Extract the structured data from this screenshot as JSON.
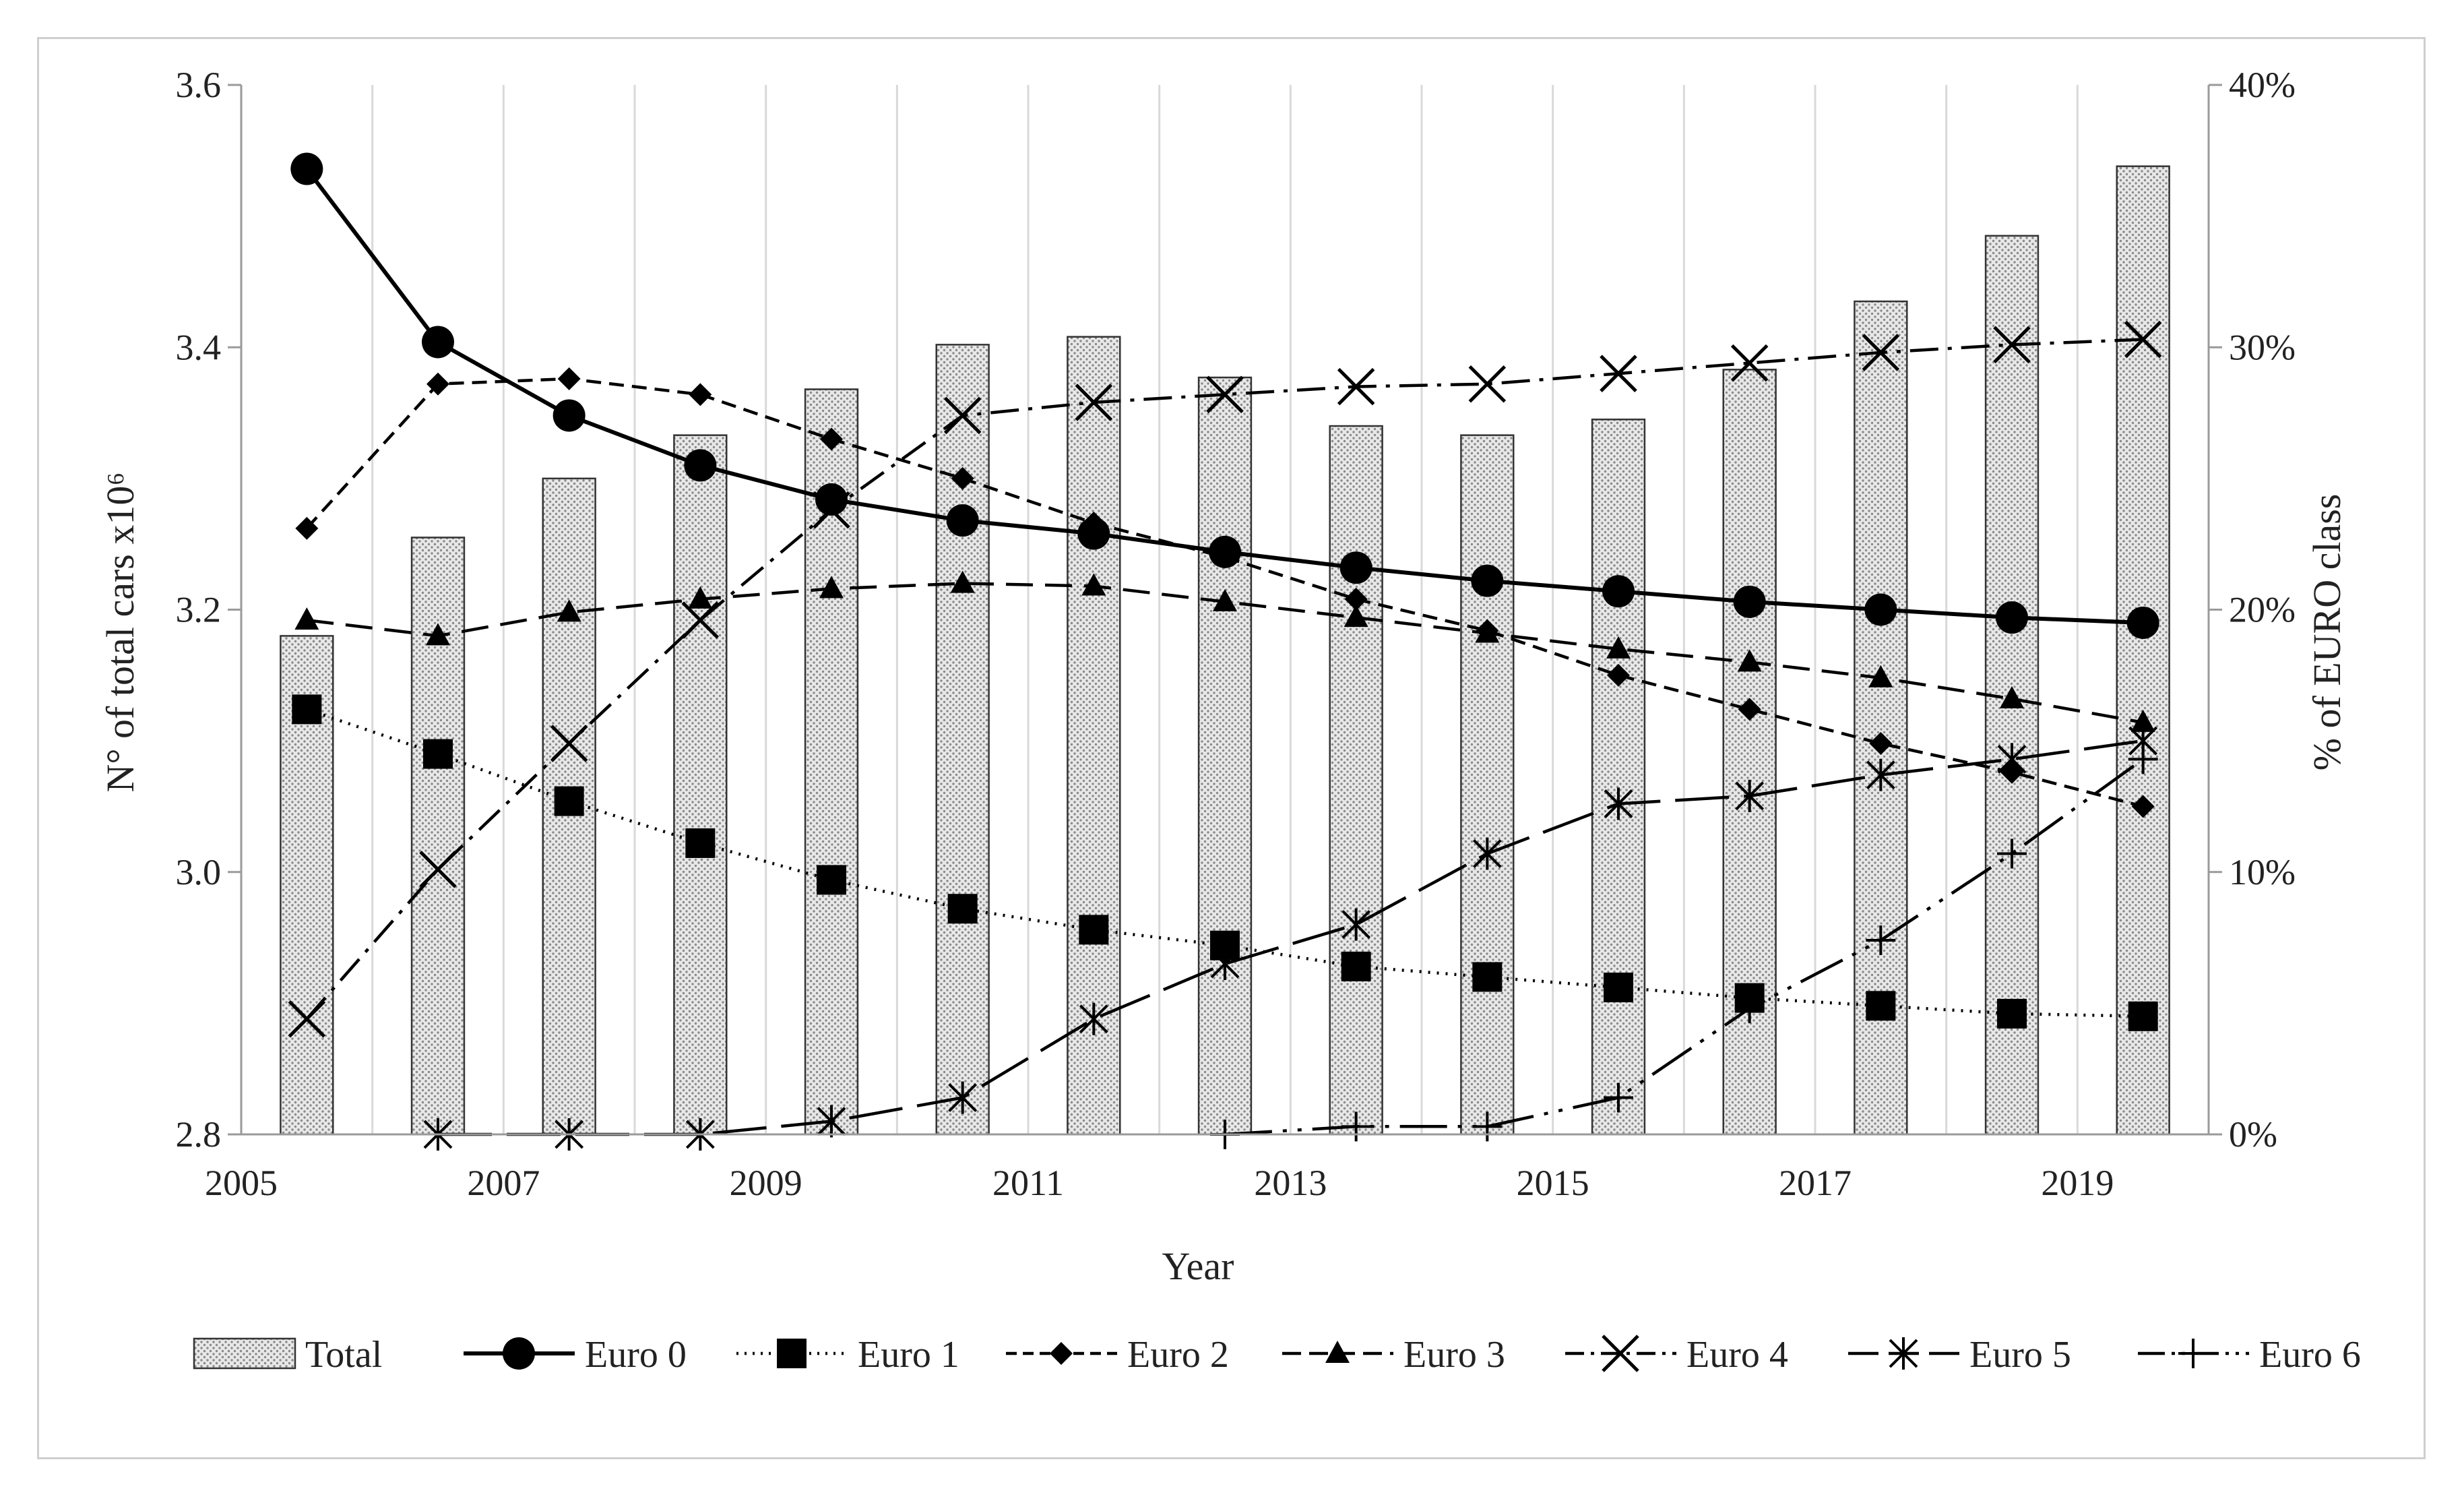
{
  "chart_data": {
    "type": "bar+line",
    "xlabel": "Year",
    "ylabel_left": "N° of total cars x10⁶",
    "ylabel_right": "% of EURO class",
    "x_tick_labels": [
      "2005",
      "2007",
      "2009",
      "2011",
      "2013",
      "2015",
      "2017",
      "2019"
    ],
    "y_left_ticks": [
      "2.8",
      "3.0",
      "3.2",
      "3.4",
      "3.6"
    ],
    "y_right_ticks": [
      "0%",
      "10%",
      "20%",
      "30%",
      "40%"
    ],
    "ylim_left": [
      2.8,
      3.6
    ],
    "ylim_right": [
      0,
      40
    ],
    "grid": "vertical",
    "legend_position": "bottom",
    "years": [
      2005,
      2006,
      2007,
      2008,
      2009,
      2010,
      2011,
      2012,
      2013,
      2014,
      2015,
      2016,
      2017,
      2018,
      2019
    ],
    "bars": {
      "name": "Total",
      "axis": "left",
      "values": [
        3.18,
        3.255,
        3.3,
        3.333,
        3.368,
        3.402,
        3.408,
        3.377,
        3.34,
        3.333,
        3.345,
        3.383,
        3.435,
        3.485,
        3.538
      ]
    },
    "series": [
      {
        "name": "Euro 0",
        "axis": "right",
        "marker": "circle",
        "dash": "solid",
        "values": [
          36.8,
          30.2,
          27.4,
          25.5,
          24.2,
          23.4,
          22.9,
          22.2,
          21.6,
          21.1,
          20.7,
          20.3,
          20.0,
          19.7,
          19.5
        ]
      },
      {
        "name": "Euro 1",
        "axis": "right",
        "marker": "square",
        "dash": "dotted",
        "values": [
          16.2,
          14.5,
          12.7,
          11.1,
          9.7,
          8.6,
          7.8,
          7.2,
          6.4,
          6.0,
          5.6,
          5.2,
          4.9,
          4.6,
          4.5
        ]
      },
      {
        "name": "Euro 2",
        "axis": "right",
        "marker": "diamond",
        "dash": "short-dash",
        "values": [
          23.1,
          28.6,
          28.8,
          28.2,
          26.5,
          25.0,
          23.3,
          22.0,
          20.4,
          19.2,
          17.5,
          16.2,
          14.9,
          13.8,
          12.5
        ]
      },
      {
        "name": "Euro 3",
        "axis": "right",
        "marker": "triangle",
        "dash": "dash",
        "values": [
          19.6,
          19.0,
          19.9,
          20.4,
          20.8,
          21.0,
          20.9,
          20.3,
          19.7,
          19.1,
          18.5,
          18.0,
          17.4,
          16.6,
          15.7
        ]
      },
      {
        "name": "Euro 4",
        "axis": "right",
        "marker": "x",
        "dash": "dash-dot",
        "values": [
          4.4,
          10.1,
          14.9,
          19.6,
          23.8,
          27.4,
          27.9,
          28.2,
          28.5,
          28.6,
          29.0,
          29.4,
          29.8,
          30.1,
          30.3
        ]
      },
      {
        "name": "Euro 5",
        "axis": "right",
        "marker": "asterisk",
        "dash": "long-dash",
        "values": [
          null,
          0.0,
          0.0,
          0.0,
          0.5,
          1.4,
          4.4,
          6.5,
          8.0,
          10.7,
          12.6,
          12.9,
          13.7,
          14.3,
          15.0
        ]
      },
      {
        "name": "Euro 6",
        "axis": "right",
        "marker": "plus",
        "dash": "long-dash-dot-dot",
        "values": [
          null,
          null,
          null,
          null,
          null,
          null,
          null,
          0.0,
          0.3,
          0.3,
          1.4,
          4.8,
          7.4,
          10.7,
          14.3
        ]
      }
    ]
  }
}
